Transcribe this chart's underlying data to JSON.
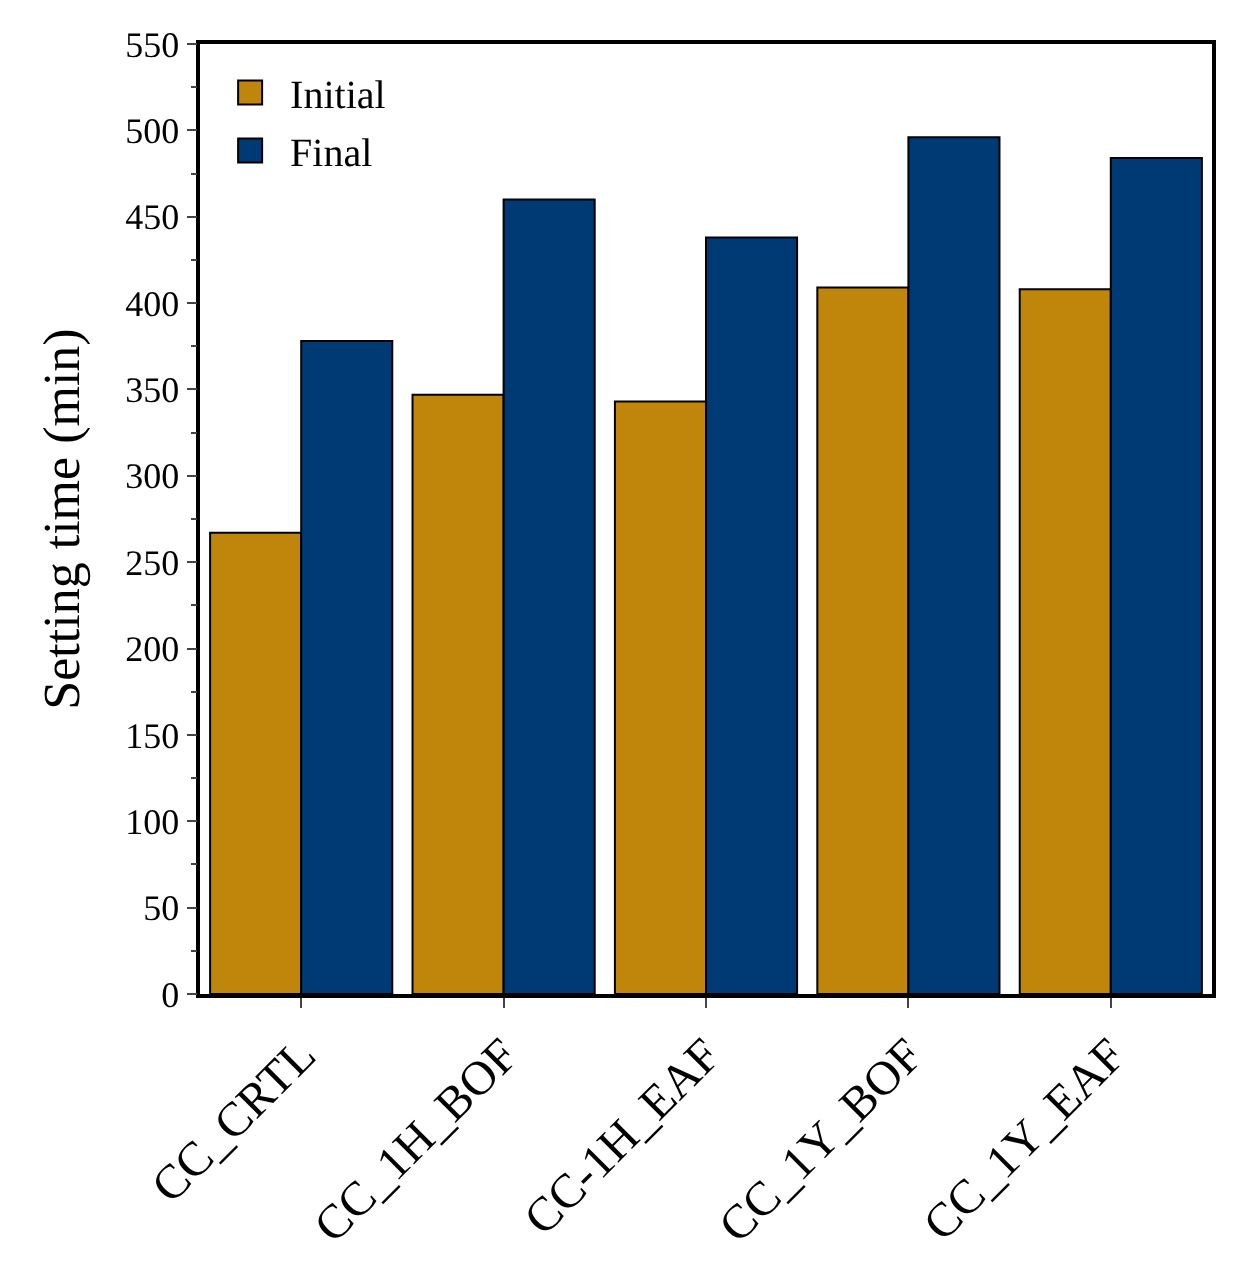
{
  "chart_data": {
    "type": "bar",
    "ylabel": "Setting time (min)",
    "categories": [
      "CC_CRTL",
      "CC_1H_BOF",
      "CC-1H_EAF",
      "CC_1Y_BOF",
      "CC_1Y_EAF"
    ],
    "series": [
      {
        "name": "Initial",
        "color": "#bf860b",
        "values": [
          267,
          347,
          343,
          409,
          408
        ]
      },
      {
        "name": "Final",
        "color": "#003a75",
        "values": [
          378,
          460,
          438,
          496,
          484
        ]
      }
    ],
    "ylim": [
      0,
      550
    ],
    "yticks": [
      0,
      50,
      100,
      150,
      200,
      250,
      300,
      350,
      400,
      450,
      500,
      550
    ],
    "legend": "top left"
  }
}
